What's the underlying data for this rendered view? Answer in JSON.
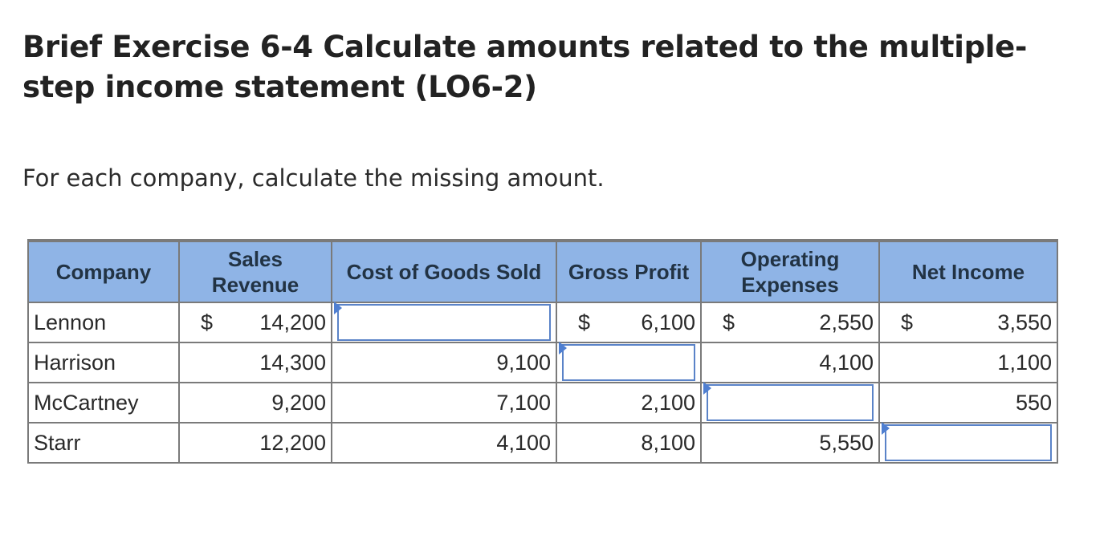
{
  "page": {
    "title": "Brief Exercise 6-4 Calculate amounts related to the multiple-step income statement (LO6-2)",
    "instructions": "For each company, calculate the missing amount."
  },
  "table": {
    "headers": {
      "company": "Company",
      "sales_revenue": "Sales Revenue",
      "cogs": "Cost of Goods Sold",
      "gross_profit": "Gross Profit",
      "operating_expenses": "Operating Expenses",
      "net_income": "Net Income"
    },
    "currency_symbol": "$",
    "rows": [
      {
        "company": "Lennon",
        "sales_revenue": "14,200",
        "cogs": "",
        "gross_profit": "6,100",
        "operating_expenses": "2,550",
        "net_income": "3,550"
      },
      {
        "company": "Harrison",
        "sales_revenue": "14,300",
        "cogs": "9,100",
        "gross_profit": "",
        "operating_expenses": "4,100",
        "net_income": "1,100"
      },
      {
        "company": "McCartney",
        "sales_revenue": "9,200",
        "cogs": "7,100",
        "gross_profit": "2,100",
        "operating_expenses": "",
        "net_income": "550"
      },
      {
        "company": "Starr",
        "sales_revenue": "12,200",
        "cogs": "4,100",
        "gross_profit": "8,100",
        "operating_expenses": "5,550",
        "net_income": ""
      }
    ]
  },
  "colors": {
    "header_bg": "#8fb4e6",
    "input_border": "#5a83c8",
    "flag": "#4f7fd1",
    "grid": "#7a7a7a"
  },
  "icons": {
    "input_marker": "triangle-flag-icon"
  }
}
